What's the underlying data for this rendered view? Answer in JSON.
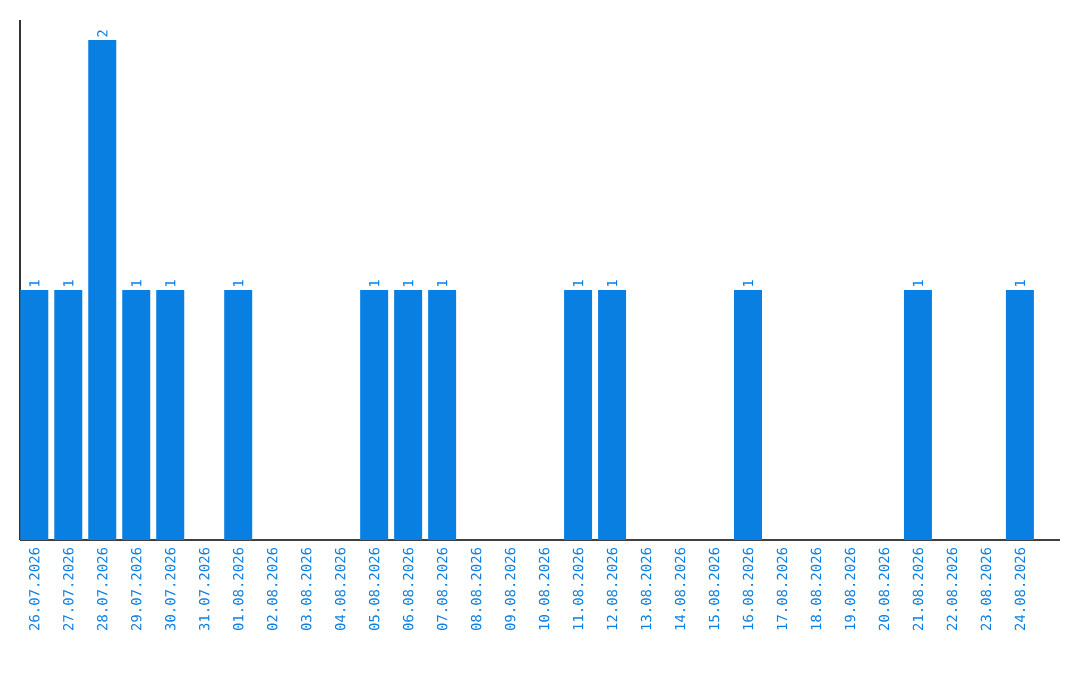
{
  "chart_data": {
    "type": "bar",
    "categories": [
      "26.07.2026",
      "27.07.2026",
      "28.07.2026",
      "29.07.2026",
      "30.07.2026",
      "31.07.2026",
      "01.08.2026",
      "02.08.2026",
      "03.08.2026",
      "04.08.2026",
      "05.08.2026",
      "06.08.2026",
      "07.08.2026",
      "08.08.2026",
      "09.08.2026",
      "10.08.2026",
      "11.08.2026",
      "12.08.2026",
      "13.08.2026",
      "14.08.2026",
      "15.08.2026",
      "16.08.2026",
      "17.08.2026",
      "18.08.2026",
      "19.08.2026",
      "20.08.2026",
      "21.08.2026",
      "22.08.2026",
      "23.08.2026",
      "24.08.2026"
    ],
    "values": [
      1,
      1,
      2,
      1,
      1,
      0,
      1,
      0,
      0,
      0,
      1,
      1,
      1,
      0,
      0,
      0,
      1,
      1,
      0,
      0,
      0,
      1,
      0,
      0,
      0,
      0,
      1,
      0,
      0,
      1
    ],
    "value_labels": [
      "1",
      "1",
      "2",
      "1",
      "1",
      null,
      "1",
      null,
      null,
      null,
      "1",
      "1",
      "1",
      null,
      null,
      null,
      "1",
      "1",
      null,
      null,
      null,
      "1",
      null,
      null,
      null,
      null,
      "1",
      null,
      null,
      "1"
    ],
    "color": "#0a7fe2"
  }
}
